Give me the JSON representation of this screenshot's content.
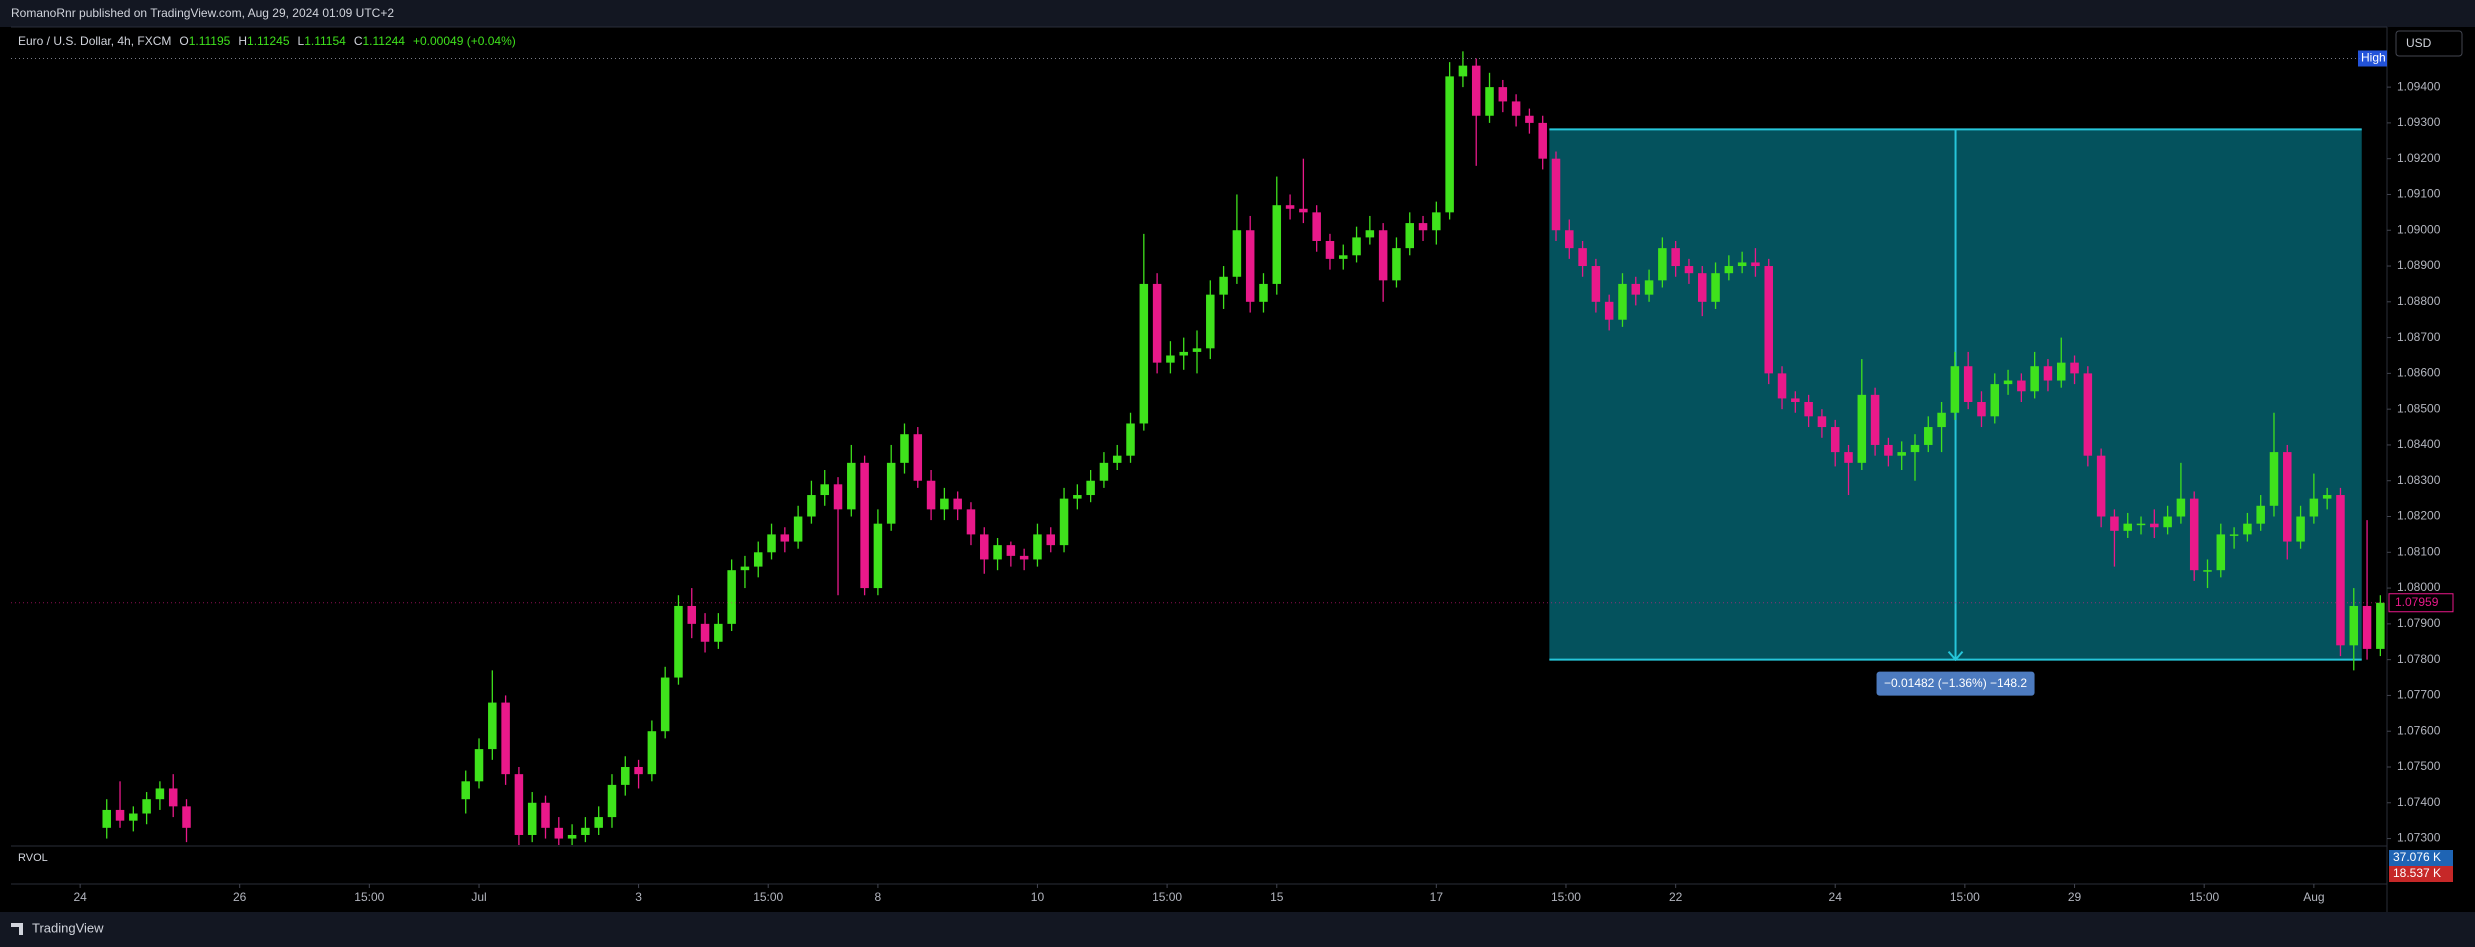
{
  "page_header": "RomanoRnr published on TradingView.com, Aug 29, 2024 01:09 UTC+2",
  "footer": "TradingView",
  "chart_data": {
    "type": "candlestick",
    "legend": {
      "symbol": "Euro / U.S. Dollar, 4h, FXCM",
      "items": [
        {
          "label": "O",
          "value": 1.11195
        },
        {
          "label": "H",
          "value": 1.11245
        },
        {
          "label": "L",
          "value": 1.11154
        },
        {
          "label": "C",
          "value": 1.11244
        }
      ],
      "change": "+0.00049 (+0.04%)"
    },
    "currency": "USD",
    "up_color": "#3fe21c",
    "down_color": "#e9198a",
    "grid": false,
    "xlim": [
      -5.2,
      173.5
    ],
    "xticks": [
      {
        "value": 0,
        "label": "24"
      },
      {
        "value": 12,
        "label": "26"
      },
      {
        "value": 21.75,
        "label": "15:00"
      },
      {
        "value": 30,
        "label": "Jul"
      },
      {
        "value": 42,
        "label": "3"
      },
      {
        "value": 51.75,
        "label": "15:00"
      },
      {
        "value": 60,
        "label": "8"
      },
      {
        "value": 72,
        "label": "10"
      },
      {
        "value": 81.75,
        "label": "15:00"
      },
      {
        "value": 90,
        "label": "15"
      },
      {
        "value": 102,
        "label": "17"
      },
      {
        "value": 111.75,
        "label": "15:00"
      },
      {
        "value": 120,
        "label": "22"
      },
      {
        "value": 132,
        "label": "24"
      },
      {
        "value": 141.75,
        "label": "15:00"
      },
      {
        "value": 150,
        "label": "29"
      },
      {
        "value": 159.75,
        "label": "15:00"
      },
      {
        "value": 168,
        "label": "Aug"
      }
    ],
    "ylim": [
      1.07282,
      1.09568
    ],
    "yticks": [
      {
        "value": 1.094,
        "label": "1.09400"
      },
      {
        "value": 1.093,
        "label": "1.09300"
      },
      {
        "value": 1.092,
        "label": "1.09200"
      },
      {
        "value": 1.091,
        "label": "1.09100"
      },
      {
        "value": 1.09,
        "label": "1.09000"
      },
      {
        "value": 1.089,
        "label": "1.08900"
      },
      {
        "value": 1.088,
        "label": "1.08800"
      },
      {
        "value": 1.087,
        "label": "1.08700"
      },
      {
        "value": 1.086,
        "label": "1.08600"
      },
      {
        "value": 1.085,
        "label": "1.08500"
      },
      {
        "value": 1.084,
        "label": "1.08400"
      },
      {
        "value": 1.083,
        "label": "1.08300"
      },
      {
        "value": 1.082,
        "label": "1.08200"
      },
      {
        "value": 1.081,
        "label": "1.08100"
      },
      {
        "value": 1.08,
        "label": "1.08000"
      },
      {
        "value": 1.079,
        "label": "1.07900"
      },
      {
        "value": 1.078,
        "label": "1.07800"
      },
      {
        "value": 1.077,
        "label": "1.07700"
      },
      {
        "value": 1.076,
        "label": "1.07600"
      },
      {
        "value": 1.075,
        "label": "1.07500"
      },
      {
        "value": 1.074,
        "label": "1.07400"
      },
      {
        "value": 1.073,
        "label": "1.07300"
      }
    ],
    "high_line": {
      "label": "High",
      "value": 1.0948
    },
    "last_price": 1.07959,
    "measure": {
      "x_range": [
        110.5,
        171.6
      ],
      "price_range": [
        1.078,
        1.09282
      ],
      "label": "−0.01482 (−1.36%) −148.2",
      "color": "#26c6da"
    },
    "rvol": {
      "title": "RVOL",
      "volume_label": "37.076 K",
      "average_label": "18.537 K"
    },
    "x": [
      2,
      3,
      4,
      5,
      6,
      7,
      8,
      29,
      30,
      31,
      32,
      33,
      34,
      35,
      36,
      37,
      38,
      39,
      40,
      41,
      42,
      43,
      44,
      45,
      46,
      47,
      48,
      49,
      50,
      51,
      52,
      53,
      54,
      55,
      56,
      57,
      58,
      59,
      60,
      61,
      62,
      63,
      64,
      65,
      66,
      67,
      68,
      69,
      70,
      71,
      72,
      73,
      74,
      75,
      76,
      77,
      78,
      79,
      80,
      81,
      82,
      83,
      84,
      85,
      86,
      87,
      88,
      89,
      90,
      91,
      92,
      93,
      94,
      95,
      96,
      97,
      98,
      99,
      100,
      101,
      102,
      103,
      104,
      105,
      106,
      107,
      108,
      109,
      110,
      111,
      112,
      113,
      114,
      115,
      116,
      117,
      118,
      119,
      120,
      121,
      122,
      123,
      124,
      125,
      126,
      127,
      128,
      129,
      130,
      131,
      132,
      133,
      134,
      135,
      136,
      137,
      138,
      139,
      140,
      141,
      142,
      143,
      144,
      145,
      146,
      147,
      148,
      149,
      150,
      151,
      152,
      153,
      154,
      155,
      156,
      157,
      158,
      159,
      160,
      161,
      162,
      163,
      164,
      165,
      166,
      167,
      168,
      169,
      170,
      171,
      172,
      173
    ],
    "ohlc": [
      [
        1.0733,
        1.0741,
        1.073,
        1.0738
      ],
      [
        1.0738,
        1.0746,
        1.0733,
        1.0735
      ],
      [
        1.0735,
        1.0739,
        1.0732,
        1.0737
      ],
      [
        1.0737,
        1.0743,
        1.0734,
        1.0741
      ],
      [
        1.0741,
        1.0746,
        1.0738,
        1.0744
      ],
      [
        1.0744,
        1.0748,
        1.0736,
        1.0739
      ],
      [
        1.0739,
        1.0741,
        1.0729,
        1.0733
      ],
      [
        1.0741,
        1.0749,
        1.0737,
        1.0746
      ],
      [
        1.0746,
        1.0758,
        1.0744,
        1.0755
      ],
      [
        1.0755,
        1.0777,
        1.0752,
        1.0768
      ],
      [
        1.0768,
        1.077,
        1.0745,
        1.0748
      ],
      [
        1.0748,
        1.075,
        1.0728,
        1.0731
      ],
      [
        1.0731,
        1.0743,
        1.0729,
        1.074
      ],
      [
        1.074,
        1.0742,
        1.073,
        1.0733
      ],
      [
        1.0733,
        1.0736,
        1.0727,
        1.073
      ],
      [
        1.073,
        1.0734,
        1.0727,
        1.0731
      ],
      [
        1.0731,
        1.0736,
        1.0729,
        1.0733
      ],
      [
        1.0733,
        1.0739,
        1.0731,
        1.0736
      ],
      [
        1.0736,
        1.0748,
        1.0733,
        1.0745
      ],
      [
        1.0745,
        1.0753,
        1.0742,
        1.075
      ],
      [
        1.075,
        1.0752,
        1.0744,
        1.0748
      ],
      [
        1.0748,
        1.0763,
        1.0746,
        1.076
      ],
      [
        1.076,
        1.0778,
        1.0758,
        1.0775
      ],
      [
        1.0775,
        1.0798,
        1.0773,
        1.0795
      ],
      [
        1.0795,
        1.08,
        1.0786,
        1.079
      ],
      [
        1.079,
        1.0793,
        1.0782,
        1.0785
      ],
      [
        1.0785,
        1.0793,
        1.0783,
        1.079
      ],
      [
        1.079,
        1.0808,
        1.0788,
        1.0805
      ],
      [
        1.0805,
        1.0809,
        1.08,
        1.0806
      ],
      [
        1.0806,
        1.0813,
        1.0803,
        1.081
      ],
      [
        1.081,
        1.0818,
        1.0808,
        1.0815
      ],
      [
        1.0815,
        1.0817,
        1.081,
        1.0813
      ],
      [
        1.0813,
        1.0823,
        1.0811,
        1.082
      ],
      [
        1.082,
        1.083,
        1.0818,
        1.0826
      ],
      [
        1.0826,
        1.0833,
        1.0823,
        1.0829
      ],
      [
        1.0829,
        1.0831,
        1.0798,
        1.0822
      ],
      [
        1.0822,
        1.084,
        1.082,
        1.0835
      ],
      [
        1.0835,
        1.0837,
        1.0798,
        1.08
      ],
      [
        1.08,
        1.0822,
        1.0798,
        1.0818
      ],
      [
        1.0818,
        1.084,
        1.0816,
        1.0835
      ],
      [
        1.0835,
        1.0846,
        1.0832,
        1.0843
      ],
      [
        1.0843,
        1.0845,
        1.0828,
        1.083
      ],
      [
        1.083,
        1.0833,
        1.0819,
        1.0822
      ],
      [
        1.0822,
        1.0828,
        1.0819,
        1.0825
      ],
      [
        1.0825,
        1.0827,
        1.0819,
        1.0822
      ],
      [
        1.0822,
        1.0824,
        1.0812,
        1.0815
      ],
      [
        1.0815,
        1.0817,
        1.0804,
        1.0808
      ],
      [
        1.0808,
        1.0814,
        1.0805,
        1.0812
      ],
      [
        1.0812,
        1.0813,
        1.0806,
        1.0809
      ],
      [
        1.0809,
        1.0811,
        1.0805,
        1.0808
      ],
      [
        1.0808,
        1.0818,
        1.0806,
        1.0815
      ],
      [
        1.0815,
        1.0817,
        1.081,
        1.0812
      ],
      [
        1.0812,
        1.0828,
        1.081,
        1.0825
      ],
      [
        1.0825,
        1.0829,
        1.0822,
        1.0826
      ],
      [
        1.0826,
        1.0833,
        1.0824,
        1.083
      ],
      [
        1.083,
        1.0838,
        1.0828,
        1.0835
      ],
      [
        1.0835,
        1.084,
        1.0833,
        1.0837
      ],
      [
        1.0837,
        1.0849,
        1.0835,
        1.0846
      ],
      [
        1.0846,
        1.0899,
        1.0844,
        1.0885
      ],
      [
        1.0885,
        1.0888,
        1.086,
        1.0863
      ],
      [
        1.0863,
        1.0869,
        1.086,
        1.0865
      ],
      [
        1.0865,
        1.087,
        1.0861,
        1.0866
      ],
      [
        1.0866,
        1.0872,
        1.086,
        1.0867
      ],
      [
        1.0867,
        1.0886,
        1.0864,
        1.0882
      ],
      [
        1.0882,
        1.089,
        1.0878,
        1.0887
      ],
      [
        1.0887,
        1.091,
        1.0885,
        1.09
      ],
      [
        1.09,
        1.0904,
        1.0877,
        1.088
      ],
      [
        1.088,
        1.0888,
        1.0877,
        1.0885
      ],
      [
        1.0885,
        1.0915,
        1.0882,
        1.0907
      ],
      [
        1.0907,
        1.091,
        1.0903,
        1.0906
      ],
      [
        1.0906,
        1.092,
        1.0902,
        1.0905
      ],
      [
        1.0905,
        1.0907,
        1.0894,
        1.0897
      ],
      [
        1.0897,
        1.0899,
        1.0889,
        1.0892
      ],
      [
        1.0892,
        1.0896,
        1.0889,
        1.0893
      ],
      [
        1.0893,
        1.0901,
        1.0891,
        1.0898
      ],
      [
        1.0898,
        1.0904,
        1.0896,
        1.09
      ],
      [
        1.09,
        1.0902,
        1.088,
        1.0886
      ],
      [
        1.0886,
        1.0898,
        1.0884,
        1.0895
      ],
      [
        1.0895,
        1.0905,
        1.0893,
        1.0902
      ],
      [
        1.0902,
        1.0904,
        1.0897,
        1.09
      ],
      [
        1.09,
        1.0908,
        1.0896,
        1.0905
      ],
      [
        1.0905,
        1.0947,
        1.0903,
        1.0943
      ],
      [
        1.0943,
        1.095,
        1.094,
        1.0946
      ],
      [
        1.0946,
        1.0948,
        1.0918,
        1.0932
      ],
      [
        1.0932,
        1.0944,
        1.093,
        1.094
      ],
      [
        1.094,
        1.0942,
        1.0933,
        1.0936
      ],
      [
        1.0936,
        1.0938,
        1.0929,
        1.0932
      ],
      [
        1.0932,
        1.0934,
        1.0927,
        1.093
      ],
      [
        1.093,
        1.0932,
        1.0917,
        1.092
      ],
      [
        1.092,
        1.0922,
        1.0897,
        1.09
      ],
      [
        1.09,
        1.0903,
        1.0892,
        1.0895
      ],
      [
        1.0895,
        1.0897,
        1.0887,
        1.089
      ],
      [
        1.089,
        1.0892,
        1.0877,
        1.088
      ],
      [
        1.088,
        1.0882,
        1.0872,
        1.0875
      ],
      [
        1.0875,
        1.0888,
        1.0873,
        1.0885
      ],
      [
        1.0885,
        1.0887,
        1.0879,
        1.0882
      ],
      [
        1.0882,
        1.0889,
        1.088,
        1.0886
      ],
      [
        1.0886,
        1.0898,
        1.0884,
        1.0895
      ],
      [
        1.0895,
        1.0897,
        1.0887,
        1.089
      ],
      [
        1.089,
        1.0892,
        1.0885,
        1.0888
      ],
      [
        1.0888,
        1.089,
        1.0876,
        1.088
      ],
      [
        1.088,
        1.0891,
        1.0878,
        1.0888
      ],
      [
        1.0888,
        1.0893,
        1.0886,
        1.089
      ],
      [
        1.089,
        1.0894,
        1.0888,
        1.0891
      ],
      [
        1.0891,
        1.0895,
        1.0887,
        1.089
      ],
      [
        1.089,
        1.0892,
        1.0857,
        1.086
      ],
      [
        1.086,
        1.0862,
        1.085,
        1.0853
      ],
      [
        1.0853,
        1.0855,
        1.0849,
        1.0852
      ],
      [
        1.0852,
        1.0854,
        1.0845,
        1.0848
      ],
      [
        1.0848,
        1.085,
        1.0842,
        1.0845
      ],
      [
        1.0845,
        1.0847,
        1.0834,
        1.0838
      ],
      [
        1.0838,
        1.084,
        1.0826,
        1.0835
      ],
      [
        1.0835,
        1.0864,
        1.0833,
        1.0854
      ],
      [
        1.0854,
        1.0856,
        1.0837,
        1.084
      ],
      [
        1.084,
        1.0842,
        1.0834,
        1.0837
      ],
      [
        1.0837,
        1.0841,
        1.0833,
        1.0838
      ],
      [
        1.0838,
        1.0843,
        1.083,
        1.084
      ],
      [
        1.084,
        1.0848,
        1.0838,
        1.0845
      ],
      [
        1.0845,
        1.0852,
        1.0838,
        1.0849
      ],
      [
        1.0849,
        1.0866,
        1.0847,
        1.0862
      ],
      [
        1.0862,
        1.0866,
        1.085,
        1.0852
      ],
      [
        1.0852,
        1.0855,
        1.0845,
        1.0848
      ],
      [
        1.0848,
        1.086,
        1.0846,
        1.0857
      ],
      [
        1.0857,
        1.0861,
        1.0854,
        1.0858
      ],
      [
        1.0858,
        1.086,
        1.0852,
        1.0855
      ],
      [
        1.0855,
        1.0866,
        1.0853,
        1.0862
      ],
      [
        1.0862,
        1.0864,
        1.0855,
        1.0858
      ],
      [
        1.0858,
        1.087,
        1.0856,
        1.0863
      ],
      [
        1.0863,
        1.0865,
        1.0857,
        1.086
      ],
      [
        1.086,
        1.0862,
        1.0834,
        1.0837
      ],
      [
        1.0837,
        1.0839,
        1.0817,
        1.082
      ],
      [
        1.082,
        1.0822,
        1.0806,
        1.0816
      ],
      [
        1.0816,
        1.0821,
        1.0814,
        1.0818
      ],
      [
        1.0818,
        1.082,
        1.0815,
        1.0818
      ],
      [
        1.0818,
        1.0822,
        1.0814,
        1.0817
      ],
      [
        1.0817,
        1.0823,
        1.0815,
        1.082
      ],
      [
        1.082,
        1.0835,
        1.0818,
        1.0825
      ],
      [
        1.0825,
        1.0827,
        1.0802,
        1.0805
      ],
      [
        1.0805,
        1.0808,
        1.08,
        1.0805
      ],
      [
        1.0805,
        1.0818,
        1.0803,
        1.0815
      ],
      [
        1.0815,
        1.0817,
        1.0811,
        1.0815
      ],
      [
        1.0815,
        1.0821,
        1.0813,
        1.0818
      ],
      [
        1.0818,
        1.0826,
        1.0816,
        1.0823
      ],
      [
        1.0823,
        1.0849,
        1.082,
        1.0838
      ],
      [
        1.0838,
        1.084,
        1.0808,
        1.0813
      ],
      [
        1.0813,
        1.0823,
        1.0811,
        1.082
      ],
      [
        1.082,
        1.0832,
        1.0818,
        1.0825
      ],
      [
        1.0825,
        1.0828,
        1.0822,
        1.0826
      ],
      [
        1.0826,
        1.0828,
        1.0781,
        1.0784
      ],
      [
        1.0784,
        1.08,
        1.0777,
        1.0795
      ],
      [
        1.0795,
        1.0819,
        1.078,
        1.0783
      ],
      [
        1.0783,
        1.0798,
        1.0781,
        1.07959
      ]
    ]
  }
}
